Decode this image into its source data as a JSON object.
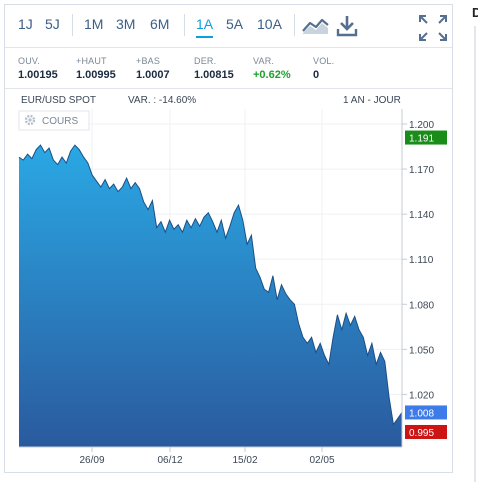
{
  "toolbar": {
    "periods": [
      "1J",
      "5J",
      "1M",
      "3M",
      "6M",
      "1A",
      "5A",
      "10A"
    ],
    "active_period": "1A"
  },
  "stats": [
    {
      "label": "OUV.",
      "value": "1.00195"
    },
    {
      "label": "+HAUT",
      "value": "1.00995"
    },
    {
      "label": "+BAS",
      "value": "1.0007"
    },
    {
      "label": "DER.",
      "value": "1.00815"
    },
    {
      "label": "VAR.",
      "value": "+0.62%"
    },
    {
      "label": "VOL.",
      "value": "0"
    }
  ],
  "chart_header": {
    "instrument": "EUR/USD SPOT",
    "variation": "VAR. : -14.60%",
    "range": "1 AN - JOUR"
  },
  "legend": {
    "label": "COURS"
  },
  "side": {
    "letter": "D"
  },
  "colors": {
    "accent": "#0ea0db",
    "high_flag": "#1a8c1a",
    "last_flag": "#3d7be8",
    "low_flag": "#cc1414",
    "area_top": "#2aa8e4",
    "area_bottom": "#2a5a9e"
  },
  "chart_data": {
    "type": "area",
    "ylim": [
      0.985,
      1.21
    ],
    "y_ticks": [
      "1.200",
      "1.170",
      "1.140",
      "1.110",
      "1.080",
      "1.050",
      "1.020"
    ],
    "x_ticks": [
      "26/09",
      "06/12",
      "15/02",
      "02/05"
    ],
    "flags": {
      "high": "1.191",
      "last": "1.008",
      "low": "0.995"
    },
    "series": [
      {
        "values": [
          1.178,
          1.176,
          1.18,
          1.177,
          1.183,
          1.186,
          1.181,
          1.184,
          1.176,
          1.173,
          1.178,
          1.174,
          1.182,
          1.186,
          1.183,
          1.178,
          1.174,
          1.166,
          1.162,
          1.158,
          1.163,
          1.157,
          1.16,
          1.155,
          1.158,
          1.164,
          1.157,
          1.161,
          1.157,
          1.148,
          1.143,
          1.149,
          1.131,
          1.135,
          1.128,
          1.136,
          1.13,
          1.133,
          1.128,
          1.136,
          1.131,
          1.137,
          1.132,
          1.138,
          1.141,
          1.135,
          1.128,
          1.136,
          1.124,
          1.132,
          1.141,
          1.146,
          1.136,
          1.12,
          1.126,
          1.104,
          1.098,
          1.09,
          1.088,
          1.099,
          1.083,
          1.093,
          1.087,
          1.083,
          1.08,
          1.067,
          1.058,
          1.054,
          1.058,
          1.048,
          1.054,
          1.046,
          1.04,
          1.058,
          1.073,
          1.063,
          1.074,
          1.066,
          1.072,
          1.063,
          1.058,
          1.046,
          1.054,
          1.04,
          1.048,
          1.042,
          1.018,
          1.0,
          1.004,
          1.008
        ]
      }
    ]
  }
}
